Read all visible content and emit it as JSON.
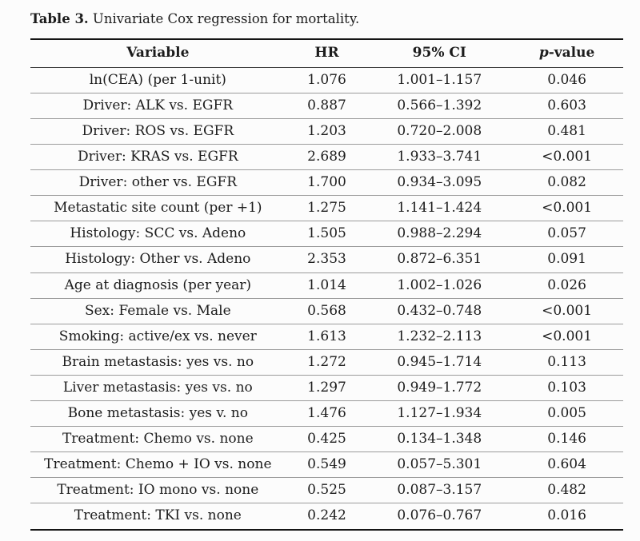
{
  "caption": {
    "label": "Table 3.",
    "text": "Univariate Cox regression for mortality."
  },
  "table": {
    "header": {
      "variable": "Variable",
      "hr": "HR",
      "ci": "95% CI",
      "p_italic": "p",
      "p_rest": "-value"
    },
    "rows": [
      {
        "variable": "ln(CEA) (per 1-unit)",
        "hr": "1.076",
        "ci": "1.001–1.157",
        "p": "0.046"
      },
      {
        "variable": "Driver: ALK vs. EGFR",
        "hr": "0.887",
        "ci": "0.566–1.392",
        "p": "0.603"
      },
      {
        "variable": "Driver: ROS vs. EGFR",
        "hr": "1.203",
        "ci": "0.720–2.008",
        "p": "0.481"
      },
      {
        "variable": "Driver: KRAS vs. EGFR",
        "hr": "2.689",
        "ci": "1.933–3.741",
        "p": "<0.001"
      },
      {
        "variable": "Driver: other vs. EGFR",
        "hr": "1.700",
        "ci": "0.934–3.095",
        "p": "0.082"
      },
      {
        "variable": "Metastatic site count (per +1)",
        "hr": "1.275",
        "ci": "1.141–1.424",
        "p": "<0.001"
      },
      {
        "variable": "Histology: SCC vs. Adeno",
        "hr": "1.505",
        "ci": "0.988–2.294",
        "p": "0.057"
      },
      {
        "variable": "Histology: Other vs. Adeno",
        "hr": "2.353",
        "ci": "0.872–6.351",
        "p": "0.091"
      },
      {
        "variable": "Age at diagnosis (per year)",
        "hr": "1.014",
        "ci": "1.002–1.026",
        "p": "0.026"
      },
      {
        "variable": "Sex: Female vs. Male",
        "hr": "0.568",
        "ci": "0.432–0.748",
        "p": "<0.001"
      },
      {
        "variable": "Smoking: active/ex vs. never",
        "hr": "1.613",
        "ci": "1.232–2.113",
        "p": "<0.001"
      },
      {
        "variable": "Brain metastasis: yes vs. no",
        "hr": "1.272",
        "ci": "0.945–1.714",
        "p": "0.113"
      },
      {
        "variable": "Liver metastasis: yes vs. no",
        "hr": "1.297",
        "ci": "0.949–1.772",
        "p": "0.103"
      },
      {
        "variable": "Bone metastasis: yes v. no",
        "hr": "1.476",
        "ci": "1.127–1.934",
        "p": "0.005"
      },
      {
        "variable": "Treatment: Chemo vs. none",
        "hr": "0.425",
        "ci": "0.134–1.348",
        "p": "0.146"
      },
      {
        "variable": "Treatment: Chemo + IO vs. none",
        "hr": "0.549",
        "ci": "0.057–5.301",
        "p": "0.604"
      },
      {
        "variable": "Treatment: IO mono vs. none",
        "hr": "0.525",
        "ci": "0.087–3.157",
        "p": "0.482"
      },
      {
        "variable": "Treatment: TKI vs. none",
        "hr": "0.242",
        "ci": "0.076–0.767",
        "p": "0.016"
      }
    ]
  },
  "colors": {
    "background": "#fcfcfc",
    "text": "#1c1c1c",
    "rule_heavy": "#151515",
    "rule_light": "#9b9b9b"
  }
}
